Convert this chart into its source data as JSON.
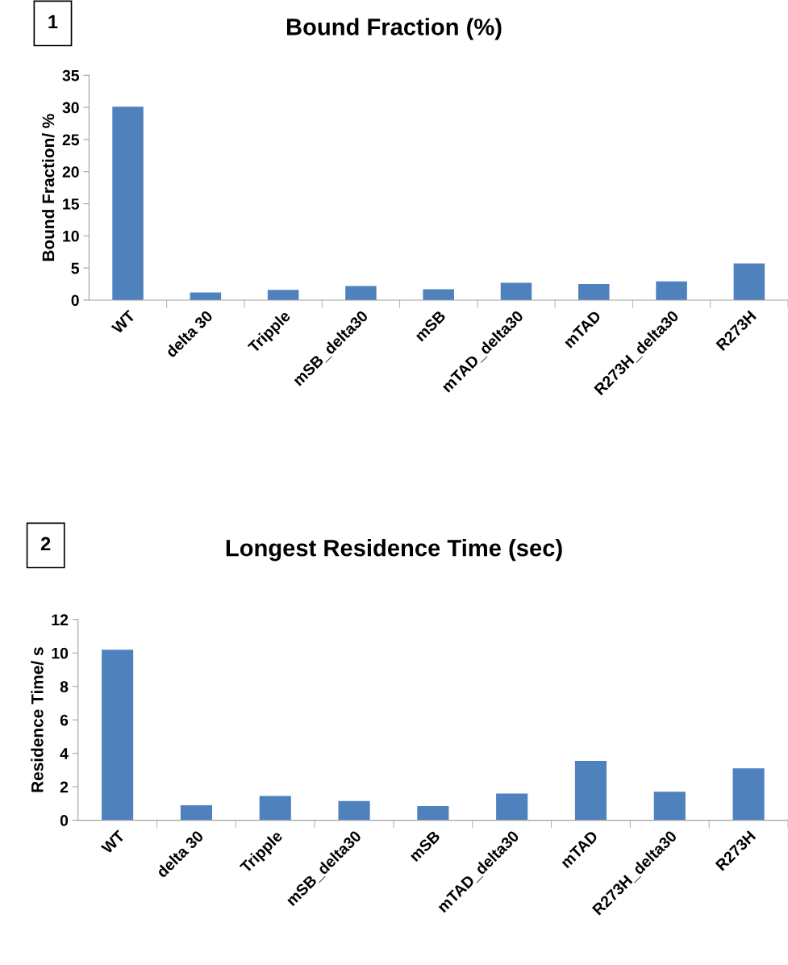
{
  "chart_data": [
    {
      "type": "bar",
      "title": "Bound Fraction (%)",
      "ylabel": "Bound Fraction/ %",
      "annotations": [
        "1"
      ],
      "categories": [
        "WT",
        "delta 30",
        "Tripple",
        "mSB_delta30",
        "mSB",
        "mTAD_delta30",
        "mTAD",
        "R273H_delta30",
        "R273H"
      ],
      "values": [
        30.1,
        1.2,
        1.6,
        2.2,
        1.7,
        2.7,
        2.5,
        2.9,
        5.7
      ],
      "color": "#4f81bd",
      "ylim": [
        0,
        35
      ],
      "yticks": [
        0,
        5,
        10,
        15,
        20,
        25,
        30,
        35
      ],
      "grid": false
    },
    {
      "type": "bar",
      "title": "Longest Residence Time (sec)",
      "ylabel": "Residence Time/ s",
      "annotations": [
        "2"
      ],
      "categories": [
        "WT",
        "delta 30",
        "Tripple",
        "mSB_delta30",
        "mSB",
        "mTAD_delta30",
        "mTAD",
        "R273H_delta30",
        "R273H"
      ],
      "values": [
        10.2,
        0.9,
        1.45,
        1.15,
        0.85,
        1.6,
        3.55,
        1.7,
        3.1
      ],
      "color": "#4f81bd",
      "ylim": [
        0,
        12
      ],
      "yticks": [
        0,
        2,
        4,
        6,
        8,
        10,
        12
      ],
      "grid": false
    }
  ]
}
